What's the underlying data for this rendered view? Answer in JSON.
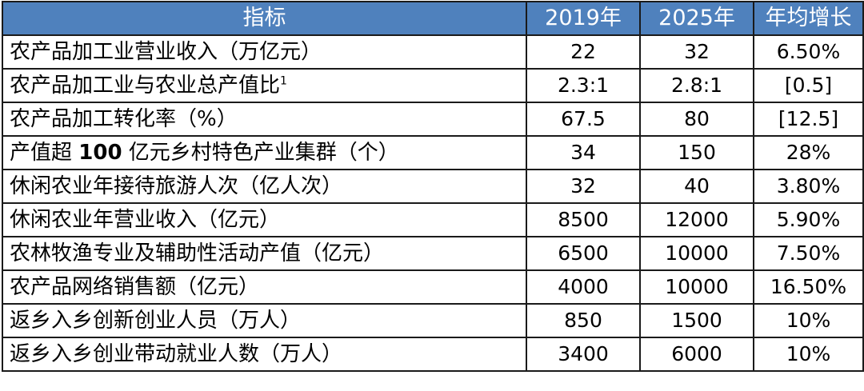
{
  "table": {
    "headers": [
      "指标",
      "2019年",
      "2025年",
      "年均增长"
    ],
    "rows": [
      {
        "name": "农产品加工业营业收入（万亿元）",
        "v2019": "22",
        "v2025": "32",
        "growth": "6.50%"
      },
      {
        "name": "农产品加工业与农业总产值比",
        "sup": "1",
        "v2019": "2.3:1",
        "v2025": "2.8:1",
        "growth": "[0.5]"
      },
      {
        "name": "农产品加工转化率（%）",
        "v2019": "67.5",
        "v2025": "80",
        "growth": "[12.5]"
      },
      {
        "name_pre": "产值超 ",
        "name_bold": "100",
        "name_post": " 亿元乡村特色产业集群（个）",
        "v2019": "34",
        "v2025": "150",
        "growth": "28%"
      },
      {
        "name": "休闲农业年接待旅游人次（亿人次）",
        "v2019": "32",
        "v2025": "40",
        "growth": "3.80%"
      },
      {
        "name": "休闲农业年营业收入（亿元）",
        "v2019": "8500",
        "v2025": "12000",
        "growth": "5.90%"
      },
      {
        "name": "农林牧渔专业及辅助性活动产值（亿元）",
        "v2019": "6500",
        "v2025": "10000",
        "growth": "7.50%"
      },
      {
        "name": "农产品网络销售额（亿元）",
        "v2019": "4000",
        "v2025": "10000",
        "growth": "16.50%"
      },
      {
        "name": "返乡入乡创新创业人员（万人）",
        "v2019": "850",
        "v2025": "1500",
        "growth": "10%"
      },
      {
        "name": "返乡入乡创业带动就业人数（万人）",
        "v2019": "3400",
        "v2025": "6000",
        "growth": "10%"
      }
    ]
  },
  "colors": {
    "header_bg": "#4f81bd",
    "header_text": "#ffffff",
    "border": "#1a1a1a",
    "body_text": "#000000"
  }
}
